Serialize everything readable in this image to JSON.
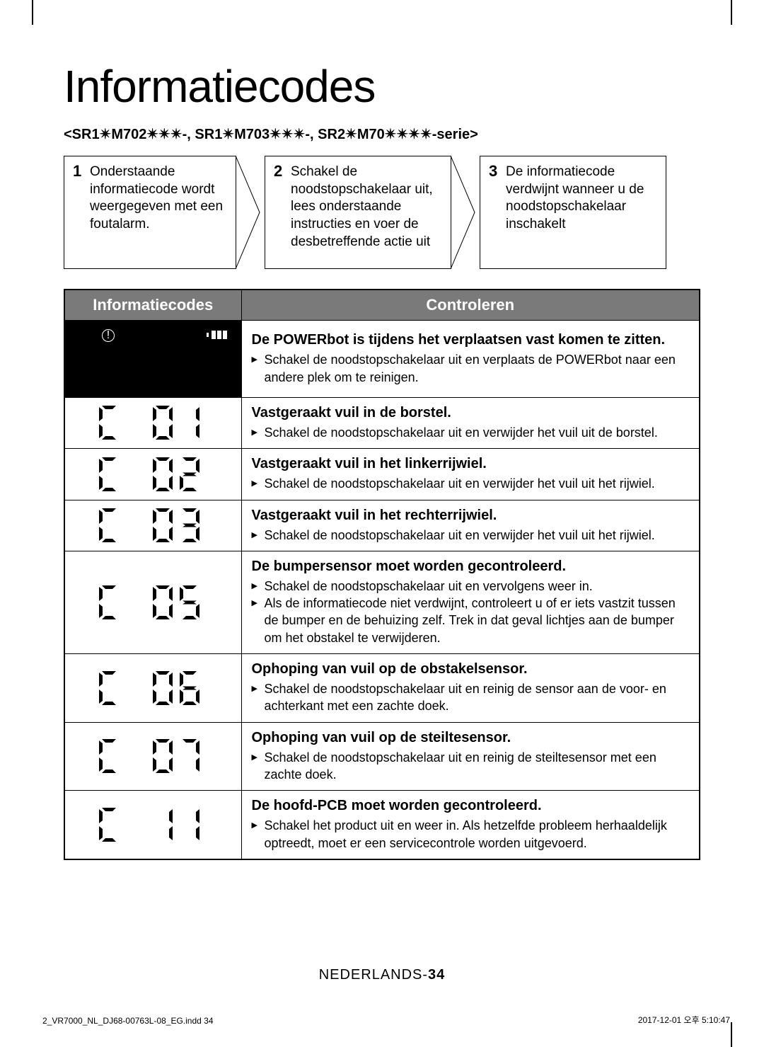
{
  "heading": "Informatiecodes",
  "subheading": "<SR1✴M702✴✴✴-, SR1✴M703✴✴✴-, SR2✴M70✴✴✴✴-serie>",
  "steps": [
    {
      "num": "1",
      "text": "Onderstaande informatiecode wordt weergegeven met een foutalarm."
    },
    {
      "num": "2",
      "text": "Schakel de noodstopschakelaar uit, lees onderstaande instructies en voer de desbetreffende actie uit"
    },
    {
      "num": "3",
      "text": "De informatiecode verdwijnt wanneer u de noodstopschakelaar inschakelt"
    }
  ],
  "table": {
    "headers": {
      "col1": "Informatiecodes",
      "col2": "Controleren"
    },
    "rows": [
      {
        "code_display": "panel",
        "title": "De POWERbot is tijdens het verplaatsen vast komen te zitten.",
        "bullets": [
          "Schakel de noodstopschakelaar uit en verplaats de POWERbot naar een andere plek om te reinigen."
        ]
      },
      {
        "code": "C 01",
        "title": "Vastgeraakt vuil in de borstel.",
        "bullets": [
          "Schakel de noodstopschakelaar uit en verwijder het vuil uit de borstel."
        ]
      },
      {
        "code": "C 02",
        "title": "Vastgeraakt vuil in het linkerrijwiel.",
        "bullets": [
          "Schakel de noodstopschakelaar uit en verwijder het vuil uit het rijwiel."
        ]
      },
      {
        "code": "C 03",
        "title": "Vastgeraakt vuil in het rechterrijwiel.",
        "bullets": [
          "Schakel de noodstopschakelaar uit en verwijder het vuil uit het rijwiel."
        ]
      },
      {
        "code": "C 05",
        "title": "De bumpersensor moet worden gecontroleerd.",
        "bullets": [
          "Schakel de noodstopschakelaar uit en vervolgens weer in.",
          "Als de informatiecode niet verdwijnt, controleert u of er iets vastzit tussen de bumper en de behuizing zelf. Trek in dat geval lichtjes aan de bumper om het obstakel te verwijderen."
        ]
      },
      {
        "code": "C 06",
        "title": "Ophoping van vuil op de obstakelsensor.",
        "bullets": [
          "Schakel de noodstopschakelaar uit en reinig de sensor aan de voor- en achterkant met een zachte doek."
        ]
      },
      {
        "code": "C 07",
        "title": "Ophoping van vuil op de steiltesensor.",
        "bullets": [
          "Schakel de noodstopschakelaar uit en reinig de steiltesensor met een zachte doek."
        ]
      },
      {
        "code": "C 11",
        "title": "De hoofd-PCB moet worden gecontroleerd.",
        "bullets": [
          "Schakel het product uit en weer in. Als hetzelfde probleem herhaaldelijk optreedt, moet er een servicecontrole worden uitgevoerd."
        ]
      }
    ]
  },
  "footer": {
    "lang": "NEDERLANDS-",
    "page": "34",
    "file": "2_VR7000_NL_DJ68-00763L-08_EG.indd   34",
    "timestamp": "2017-12-01   오후 5:10:47"
  },
  "colors": {
    "header_bg": "#7a7a7a",
    "panel_bg": "#000000",
    "text": "#000000",
    "white": "#ffffff"
  }
}
